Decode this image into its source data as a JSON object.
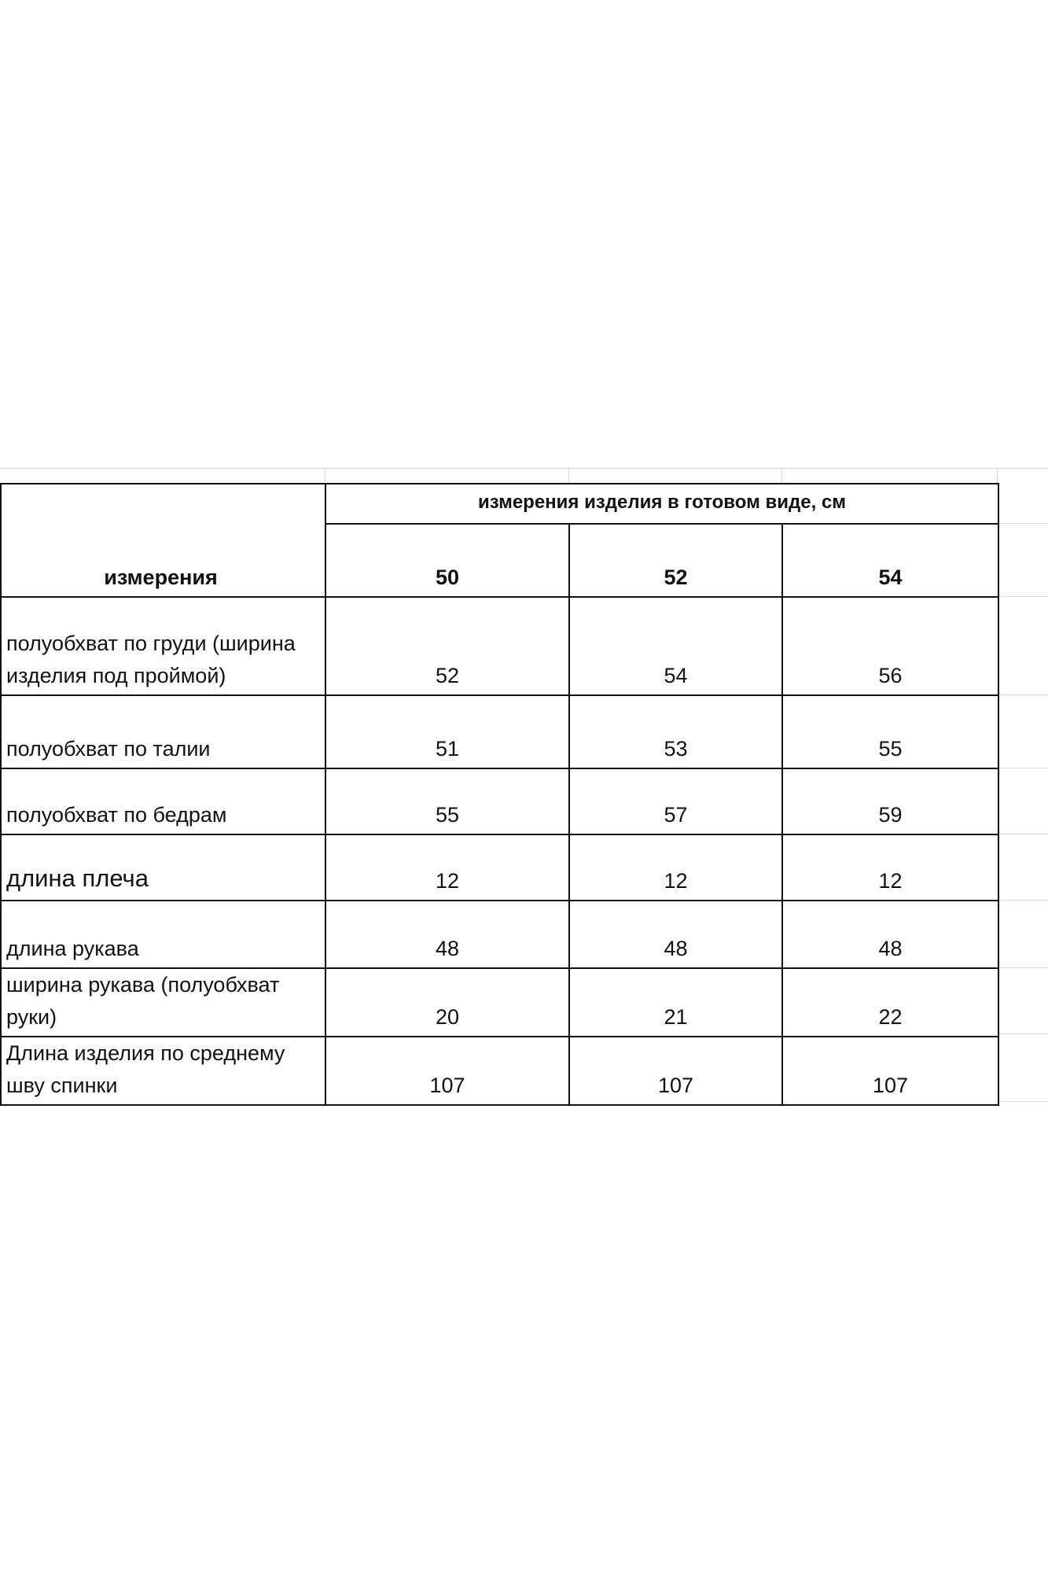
{
  "table": {
    "group_header": "измерения изделия в готовом виде, см",
    "row_header": "измерения",
    "sizes": [
      "50",
      "52",
      "54"
    ],
    "rows": [
      {
        "label": "полуобхват по груди (ширина изделия под проймой)",
        "values": [
          "52",
          "54",
          "56"
        ]
      },
      {
        "label": "полуобхват по талии",
        "values": [
          "51",
          "53",
          "55"
        ]
      },
      {
        "label": "полуобхват по бедрам",
        "values": [
          "55",
          "57",
          "59"
        ]
      },
      {
        "label": "длина плеча",
        "values": [
          "12",
          "12",
          "12"
        ]
      },
      {
        "label": "длина рукава",
        "values": [
          "48",
          "48",
          "48"
        ]
      },
      {
        "label": "ширина рукава (полуобхват руки)",
        "values": [
          "20",
          "21",
          "22"
        ]
      },
      {
        "label": "Длина изделия по среднему шву спинки",
        "values": [
          "107",
          "107",
          "107"
        ]
      }
    ]
  }
}
